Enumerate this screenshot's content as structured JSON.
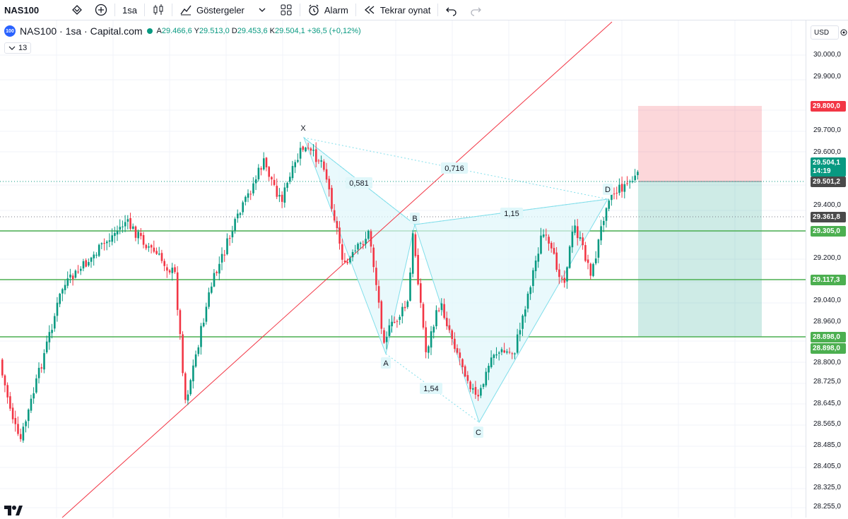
{
  "toolbar": {
    "symbol": "NAS100",
    "interval": "1sa",
    "indicators": "Göstergeler",
    "alarm": "Alarm",
    "replay": "Tekrar oynat"
  },
  "legend": {
    "logo": "100",
    "title": "NAS100 · 1sa · Capital.com",
    "open_label": "A",
    "open": "29.466,6",
    "high_label": "Y",
    "high": "29.513,0",
    "low_label": "D",
    "low": "29.453,6",
    "close_label": "K",
    "close": "29.504,1",
    "change": "+36,5 (+0,12%)",
    "collapsed_count": "13"
  },
  "axis": {
    "currency": "USD",
    "ticks": [
      "30.000,0",
      "29.900,0",
      "29.700,0",
      "29.600,0",
      "29.400,0",
      "29.200,0",
      "29.040,0",
      "28.960,0",
      "28.800,0",
      "28.725,0",
      "28.645,0",
      "28.565,0",
      "28.485,0",
      "28.405,0",
      "28.325,0",
      "28.255,0"
    ],
    "tags": [
      {
        "text": "29.800,0",
        "color": "#f23645"
      },
      {
        "text": "29.504,1",
        "color": "#089981"
      },
      {
        "text": "14:19",
        "color": "#089981"
      },
      {
        "text": "29.501,2",
        "color": "#4a4a4a"
      },
      {
        "text": "29.361,8",
        "color": "#4a4a4a"
      },
      {
        "text": "29.305,0",
        "color": "#4caf50"
      },
      {
        "text": "29.117,3",
        "color": "#4caf50"
      },
      {
        "text": "28.898,0",
        "color": "#4caf50"
      },
      {
        "text": "28.898,0",
        "color": "#4caf50"
      }
    ]
  },
  "pattern": {
    "points": [
      "X",
      "A",
      "B",
      "C",
      "D"
    ],
    "ratios": [
      "0,581",
      "0,716",
      "1,15",
      "1,54"
    ]
  },
  "colors": {
    "up": "#089981",
    "down": "#f23645",
    "level": "#4caf50",
    "trend": "#f23645",
    "pattern_fill": "#dff6fb"
  }
}
